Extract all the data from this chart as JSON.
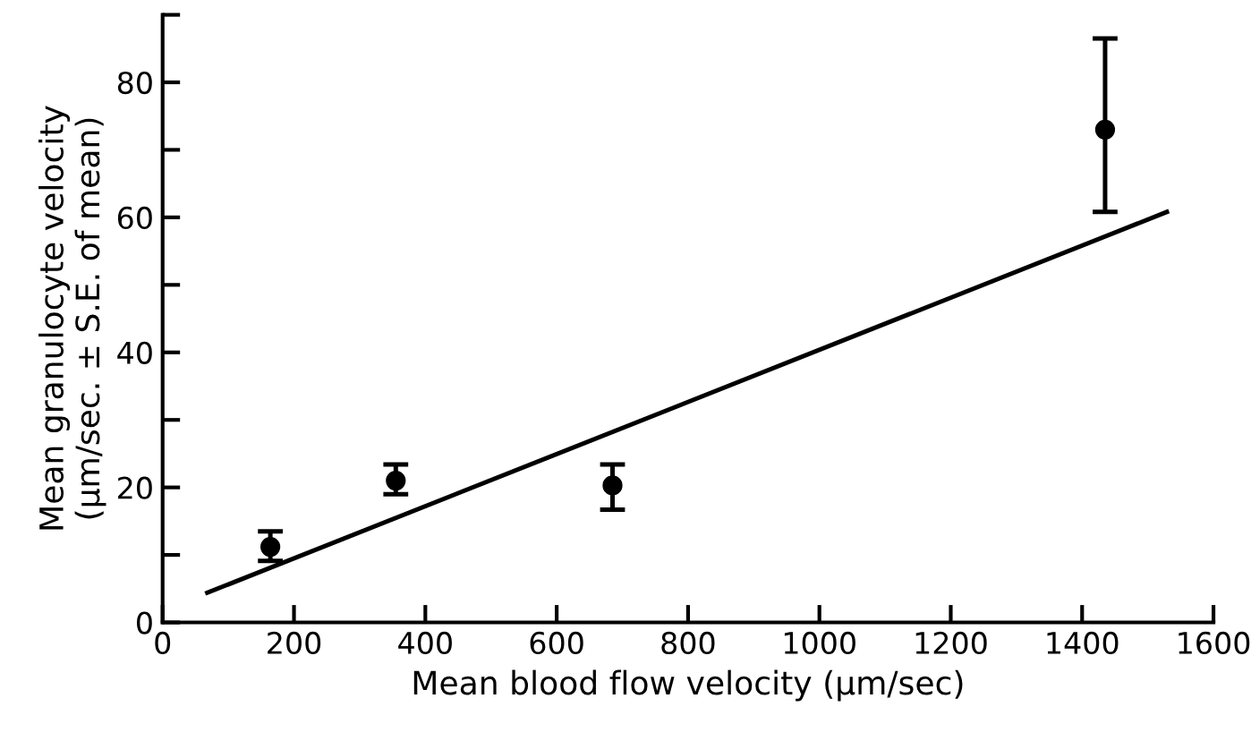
{
  "chart_data": {
    "type": "scatter",
    "xlabel": "Mean blood flow velocity (μm/sec)",
    "ylabel": "Mean granulocyte velocity\n(μm/sec. ± S.E. of mean)",
    "xlim": [
      0,
      1600
    ],
    "ylim": [
      0,
      90
    ],
    "xticks": [
      0,
      200,
      400,
      600,
      800,
      1000,
      1200,
      1400,
      1600
    ],
    "yticks": [
      0,
      {
        "value": 10,
        "label": null
      },
      20,
      {
        "value": 30,
        "label": null
      },
      40,
      {
        "value": 50,
        "label": null
      },
      60,
      {
        "value": 70,
        "label": null
      },
      80,
      {
        "value": 90,
        "label": null
      }
    ],
    "grid": false,
    "legend": false,
    "series": [
      {
        "color": "#000000",
        "marker": "circle",
        "x": [
          164,
          355,
          685,
          1435
        ],
        "values": [
          11.2,
          21.0,
          20.3,
          73.0
        ],
        "errors": [
          [
            9.1,
            13.5
          ],
          [
            19.0,
            23.4
          ],
          [
            16.7,
            23.4
          ],
          [
            60.8,
            86.5
          ]
        ]
      },
      {
        "type": "line",
        "color": "#000000",
        "marker": "none",
        "line_style": "solid",
        "x": [
          68,
          1529
        ],
        "values": [
          4.4,
          60.8
        ]
      }
    ]
  }
}
